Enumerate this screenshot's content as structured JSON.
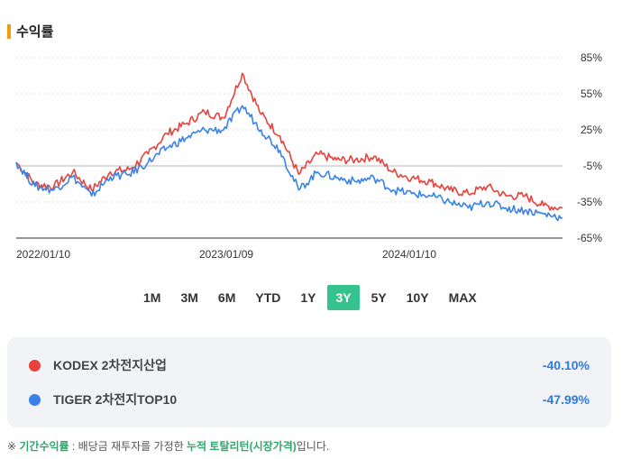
{
  "section_title": "수익률",
  "colors": {
    "accent": "#f39c12",
    "series1": "#e8423c",
    "series2": "#3b82e8",
    "active_period": "#34c38f",
    "value": "#2d7be5",
    "footnote_accent": "#34a56f"
  },
  "periods": [
    "1M",
    "3M",
    "6M",
    "YTD",
    "1Y",
    "3Y",
    "5Y",
    "10Y",
    "MAX"
  ],
  "active_period": "3Y",
  "legend": [
    {
      "name": "KODEX 2차전지산업",
      "value": "-40.10%"
    },
    {
      "name": "TIGER 2차전지TOP10",
      "value": "-47.99%"
    }
  ],
  "footnote": {
    "prefix": "※ ",
    "term": "기간수익률",
    "middle": " : 배당금 재투자를 가정한 ",
    "highlight": "누적 토탈리턴(시장가격)",
    "suffix": "입니다."
  },
  "chart_data": {
    "type": "line",
    "x_tick_labels": [
      "2022/01/10",
      "2023/01/09",
      "2024/01/10"
    ],
    "y_tick_labels": [
      "85%",
      "55%",
      "25%",
      "-5%",
      "-35%",
      "-65%"
    ],
    "ylim": [
      -65,
      85
    ],
    "reference_line": -5,
    "x": [
      "2022/01",
      "2022/03",
      "2022/05",
      "2022/07",
      "2022/09",
      "2022/11",
      "2023/01",
      "2023/02",
      "2023/03",
      "2023/04",
      "2023/05",
      "2023/06",
      "2023/07",
      "2023/08",
      "2023/09",
      "2023/10",
      "2023/11",
      "2023/12",
      "2024/01",
      "2024/02",
      "2024/03",
      "2024/04",
      "2024/05",
      "2024/06",
      "2024/07",
      "2024/08",
      "2024/09",
      "2024/10",
      "2024/11",
      "2024/12"
    ],
    "series": [
      {
        "name": "KODEX 2차전지산업",
        "values": [
          -2,
          -20,
          -22,
          -10,
          -25,
          -10,
          -8,
          5,
          22,
          30,
          40,
          35,
          72,
          38,
          20,
          -12,
          5,
          0,
          0,
          3,
          -10,
          -15,
          -18,
          -25,
          -28,
          -22,
          -30,
          -30,
          -38,
          -40.1
        ]
      },
      {
        "name": "TIGER 2차전지TOP10",
        "values": [
          -2,
          -22,
          -25,
          -14,
          -30,
          -14,
          -12,
          -2,
          10,
          18,
          25,
          25,
          45,
          25,
          8,
          -25,
          -10,
          -15,
          -18,
          -15,
          -25,
          -28,
          -30,
          -35,
          -40,
          -35,
          -40,
          -42,
          -45,
          -47.99
        ]
      }
    ]
  }
}
